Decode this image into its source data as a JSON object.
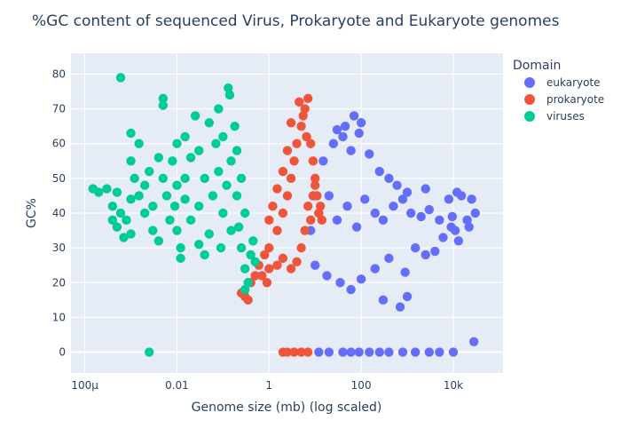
{
  "chart_data": {
    "type": "scatter",
    "title": "%GC content of sequenced Virus, Prokaryote and Eukaryote genomes",
    "xlabel": "Genome size (mb)  (log scaled)",
    "ylabel": "GC%",
    "x_scale": "log",
    "xlim": [
      5e-05,
      120000
    ],
    "ylim": [
      -6,
      86
    ],
    "x_ticks": [
      {
        "value": 0.0001,
        "label": "100μ"
      },
      {
        "value": 0.01,
        "label": "0.01"
      },
      {
        "value": 1,
        "label": "1"
      },
      {
        "value": 100,
        "label": "100"
      },
      {
        "value": 10000,
        "label": "10k"
      }
    ],
    "y_ticks": [
      0,
      10,
      20,
      30,
      40,
      50,
      60,
      70,
      80
    ],
    "grid": true,
    "legend": {
      "title": "Domain",
      "position": "right"
    },
    "series": [
      {
        "name": "eukaryote",
        "color": "#636efa",
        "points": [
          [
            8,
            35
          ],
          [
            12,
            40
          ],
          [
            20,
            45
          ],
          [
            30,
            38
          ],
          [
            50,
            42
          ],
          [
            80,
            36
          ],
          [
            120,
            44
          ],
          [
            200,
            40
          ],
          [
            300,
            38
          ],
          [
            500,
            42
          ],
          [
            800,
            44
          ],
          [
            1200,
            40
          ],
          [
            2000,
            39
          ],
          [
            3000,
            41
          ],
          [
            5000,
            38
          ],
          [
            15,
            55
          ],
          [
            25,
            60
          ],
          [
            40,
            62
          ],
          [
            60,
            58
          ],
          [
            90,
            63
          ],
          [
            150,
            57
          ],
          [
            250,
            52
          ],
          [
            100,
            66
          ],
          [
            70,
            68
          ],
          [
            45,
            65
          ],
          [
            30,
            64
          ],
          [
            400,
            50
          ],
          [
            600,
            48
          ],
          [
            1000,
            46
          ],
          [
            2500,
            47
          ],
          [
            10,
            25
          ],
          [
            18,
            22
          ],
          [
            35,
            20
          ],
          [
            60,
            18
          ],
          [
            100,
            21
          ],
          [
            200,
            24
          ],
          [
            400,
            27
          ],
          [
            900,
            23
          ],
          [
            1500,
            30
          ],
          [
            2500,
            28
          ],
          [
            4000,
            29
          ],
          [
            6000,
            33
          ],
          [
            8000,
            44
          ],
          [
            9000,
            36
          ],
          [
            12000,
            46
          ],
          [
            15000,
            45
          ],
          [
            20000,
            38
          ],
          [
            25000,
            44
          ],
          [
            30000,
            40
          ],
          [
            11000,
            35
          ],
          [
            13000,
            32
          ],
          [
            9500,
            39
          ],
          [
            22000,
            36
          ],
          [
            700,
            13
          ],
          [
            300,
            15
          ],
          [
            1000,
            16
          ],
          [
            28000,
            3
          ],
          [
            40,
            0
          ],
          [
            60,
            0
          ],
          [
            90,
            0
          ],
          [
            150,
            0
          ],
          [
            250,
            0
          ],
          [
            400,
            0
          ],
          [
            800,
            0
          ],
          [
            1500,
            0
          ],
          [
            3000,
            0
          ],
          [
            5000,
            0
          ],
          [
            10000,
            0
          ],
          [
            12,
            0
          ],
          [
            20,
            0
          ]
        ]
      },
      {
        "name": "prokaryote",
        "color": "#ef553b",
        "points": [
          [
            1,
            30
          ],
          [
            1.5,
            35
          ],
          [
            2,
            40
          ],
          [
            2.5,
            45
          ],
          [
            3,
            50
          ],
          [
            3.5,
            55
          ],
          [
            4,
            60
          ],
          [
            5,
            65
          ],
          [
            6,
            70
          ],
          [
            7,
            73
          ],
          [
            4.5,
            72
          ],
          [
            5.5,
            68
          ],
          [
            6.5,
            62
          ],
          [
            3,
            66
          ],
          [
            2.5,
            58
          ],
          [
            2,
            52
          ],
          [
            1.5,
            47
          ],
          [
            1.2,
            42
          ],
          [
            1,
            38
          ],
          [
            8,
            60
          ],
          [
            9,
            55
          ],
          [
            10,
            50
          ],
          [
            11,
            45
          ],
          [
            12,
            40
          ],
          [
            6,
            35
          ],
          [
            5,
            30
          ],
          [
            4,
            26
          ],
          [
            3,
            24
          ],
          [
            2,
            27
          ],
          [
            1.5,
            25
          ],
          [
            0.8,
            28
          ],
          [
            0.6,
            25
          ],
          [
            0.5,
            22
          ],
          [
            0.4,
            20
          ],
          [
            0.35,
            15
          ],
          [
            0.3,
            16
          ],
          [
            0.25,
            17
          ],
          [
            0.7,
            22
          ],
          [
            0.9,
            20
          ],
          [
            1,
            24
          ],
          [
            7,
            42
          ],
          [
            8,
            38
          ],
          [
            9,
            45
          ],
          [
            10,
            48
          ],
          [
            13,
            42
          ],
          [
            14,
            38
          ],
          [
            2,
            0
          ],
          [
            2.5,
            0
          ],
          [
            3.5,
            0
          ],
          [
            5,
            0
          ],
          [
            7,
            0
          ]
        ]
      },
      {
        "name": "viruses",
        "color": "#00cc96",
        "points": [
          [
            0.00015,
            47
          ],
          [
            0.0002,
            46
          ],
          [
            0.0003,
            47
          ],
          [
            0.0004,
            42
          ],
          [
            0.0004,
            38
          ],
          [
            0.0005,
            36
          ],
          [
            0.0005,
            46
          ],
          [
            0.0006,
            40
          ],
          [
            0.0007,
            33
          ],
          [
            0.0008,
            38
          ],
          [
            0.001,
            44
          ],
          [
            0.001,
            34
          ],
          [
            0.001,
            63
          ],
          [
            0.001,
            55
          ],
          [
            0.0012,
            50
          ],
          [
            0.0015,
            60
          ],
          [
            0.0015,
            45
          ],
          [
            0.002,
            48
          ],
          [
            0.002,
            40
          ],
          [
            0.0025,
            52
          ],
          [
            0.003,
            42
          ],
          [
            0.003,
            35
          ],
          [
            0.004,
            56
          ],
          [
            0.004,
            32
          ],
          [
            0.005,
            50
          ],
          [
            0.005,
            73
          ],
          [
            0.005,
            71
          ],
          [
            0.006,
            45
          ],
          [
            0.007,
            38
          ],
          [
            0.008,
            55
          ],
          [
            0.009,
            42
          ],
          [
            0.01,
            60
          ],
          [
            0.01,
            48
          ],
          [
            0.01,
            35
          ],
          [
            0.012,
            30
          ],
          [
            0.012,
            27
          ],
          [
            0.015,
            50
          ],
          [
            0.015,
            62
          ],
          [
            0.015,
            44
          ],
          [
            0.02,
            56
          ],
          [
            0.02,
            38
          ],
          [
            0.025,
            68
          ],
          [
            0.03,
            58
          ],
          [
            0.03,
            42
          ],
          [
            0.04,
            50
          ],
          [
            0.05,
            66
          ],
          [
            0.05,
            34
          ],
          [
            0.06,
            45
          ],
          [
            0.07,
            60
          ],
          [
            0.08,
            70
          ],
          [
            0.08,
            52
          ],
          [
            0.1,
            40
          ],
          [
            0.1,
            62
          ],
          [
            0.12,
            48
          ],
          [
            0.13,
            76
          ],
          [
            0.14,
            74
          ],
          [
            0.15,
            55
          ],
          [
            0.15,
            35
          ],
          [
            0.18,
            65
          ],
          [
            0.2,
            45
          ],
          [
            0.2,
            58
          ],
          [
            0.25,
            50
          ],
          [
            0.25,
            30
          ],
          [
            0.3,
            40
          ],
          [
            0.3,
            24
          ],
          [
            0.35,
            20
          ],
          [
            0.3,
            18
          ],
          [
            0.4,
            28
          ],
          [
            0.45,
            32
          ],
          [
            0.5,
            26
          ],
          [
            0.03,
            31
          ],
          [
            0.0006,
            79
          ],
          [
            0.0025,
            0
          ],
          [
            0.04,
            28
          ],
          [
            0.09,
            30
          ],
          [
            0.22,
            36
          ]
        ]
      }
    ]
  }
}
